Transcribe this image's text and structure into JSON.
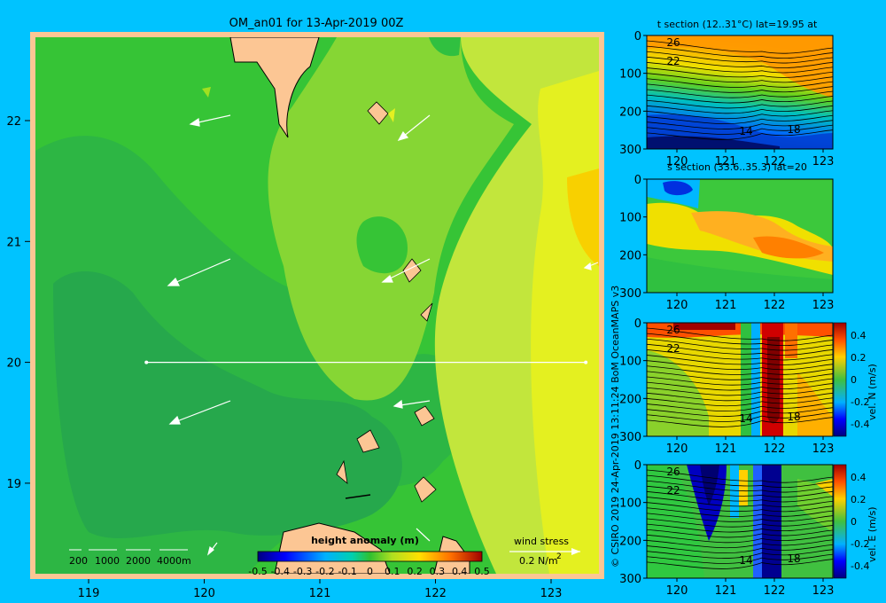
{
  "main_map": {
    "title": "OM_an01 for 13-Apr-2019 00Z",
    "x_ticks": [
      "119",
      "120",
      "121",
      "122",
      "123"
    ],
    "y_ticks": [
      "22",
      "21",
      "20",
      "19"
    ],
    "depth_legend": [
      "200",
      "1000",
      "2000",
      "4000m"
    ],
    "colorbar": {
      "title": "height anomaly (m)",
      "labels": [
        "-0.5",
        "-0.4",
        "-0.3",
        "-0.2",
        "-0.1",
        "0",
        "0.1",
        "0.2",
        "0.3",
        "0.4",
        "0.5"
      ],
      "range": [
        -0.5,
        0.5
      ]
    },
    "wind_stress": {
      "label": "wind stress",
      "scale": "0.2 N/m",
      "exp": "2"
    },
    "section_line": {
      "lat": 20,
      "lon_start": 119.5,
      "lon_end": 123.3
    },
    "colors": {
      "frame": "#fcc694",
      "land": "#fcc694",
      "background": "#00c3ff"
    }
  },
  "sections": [
    {
      "id": "t",
      "title": "t section (12..31°C) lat=19.95 at",
      "x_ticks": [
        "120",
        "121",
        "122",
        "123"
      ],
      "y_ticks": [
        "0",
        "100",
        "200",
        "300"
      ],
      "contour_labels": [
        "26",
        "22",
        "14",
        "18"
      ]
    },
    {
      "id": "s",
      "title": "s section (33.6..35.3) lat=20",
      "x_ticks": [
        "120",
        "121",
        "122",
        "123"
      ],
      "y_ticks": [
        "0",
        "100",
        "200",
        "300"
      ]
    },
    {
      "id": "vn",
      "title": "",
      "x_ticks": [
        "120",
        "121",
        "122",
        "123"
      ],
      "y_ticks": [
        "0",
        "100",
        "200",
        "300"
      ],
      "contour_labels": [
        "26",
        "22",
        "14",
        "18"
      ],
      "colorbar_labels": [
        "0.4",
        "0.2",
        "0",
        "-0.2",
        "-0.4"
      ],
      "colorbar_title": "vel. N (m/s)"
    },
    {
      "id": "ve",
      "title": "",
      "x_ticks": [
        "120",
        "121",
        "122",
        "123"
      ],
      "y_ticks": [
        "0",
        "100",
        "200",
        "300"
      ],
      "contour_labels": [
        "26",
        "22",
        "14",
        "18"
      ],
      "colorbar_labels": [
        "0.4",
        "0.2",
        "0",
        "-0.2",
        "-0.4"
      ],
      "colorbar_title": "vel. E (m/s)"
    }
  ],
  "credit": "© CSIRO 2019   24-Apr-2019 13:11:24 BoM OceanMAPS v3"
}
